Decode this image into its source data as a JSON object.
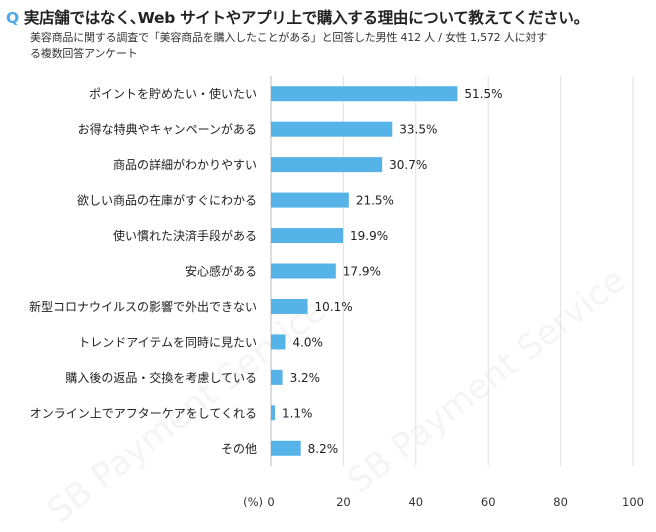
{
  "header": {
    "q_mark": "Q",
    "title": "実店舗ではなく､Web サイトやアプリ上で購入する理由について教えてください。",
    "subtitle_line1": "美容商品に関する調査で「美容商品を購入したことがある」と回答した男性 412 人 / 女性 1,572 人に対す",
    "subtitle_line2": "る複数回答アンケート"
  },
  "watermark": "SB Payment Service",
  "colors": {
    "bar": "#55b3e8",
    "accent": "#4aa8e6",
    "grid": "#e2e2e2"
  },
  "chart_data": {
    "type": "bar",
    "orientation": "horizontal",
    "categories": [
      "ポイントを貯めたい・使いたい",
      "お得な特典やキャンペーンがある",
      "商品の詳細がわかりやすい",
      "欲しい商品の在庫がすぐにわかる",
      "使い慣れた決済手段がある",
      "安心感がある",
      "新型コロナウイルスの影響で外出できない",
      "トレンドアイテムを同時に見たい",
      "購入後の返品・交換を考慮している",
      "オンライン上でアフターケアをしてくれる",
      "その他"
    ],
    "values": [
      51.5,
      33.5,
      30.7,
      21.5,
      19.9,
      17.9,
      10.1,
      4.0,
      3.2,
      1.1,
      8.2
    ],
    "value_labels": [
      "51.5%",
      "33.5%",
      "30.7%",
      "21.5%",
      "19.9%",
      "17.9%",
      "10.1%",
      "4.0%",
      "3.2%",
      "1.1%",
      "8.2%"
    ],
    "xlabel": "(%)",
    "xlim": [
      0,
      100
    ],
    "xticks": [
      "0",
      "20",
      "40",
      "60",
      "80",
      "100"
    ],
    "grid": true
  }
}
